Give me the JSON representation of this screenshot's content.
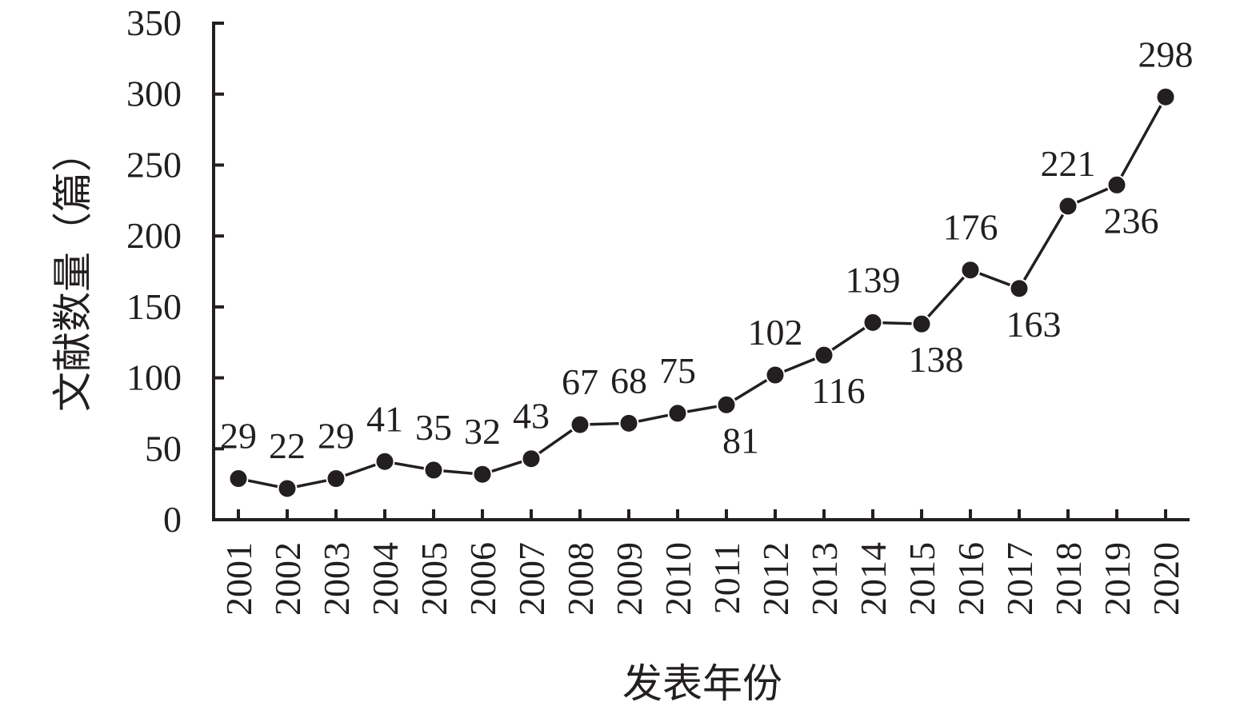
{
  "chart_data": {
    "type": "line",
    "title": "",
    "xlabel": "发表年份",
    "ylabel": "文献数量（篇）",
    "ylim": [
      0,
      350
    ],
    "yticks": [
      0,
      50,
      100,
      150,
      200,
      250,
      300,
      350
    ],
    "grid": false,
    "categories": [
      "2001",
      "2002",
      "2003",
      "2004",
      "2005",
      "2006",
      "2007",
      "2008",
      "2009",
      "2010",
      "2011",
      "2012",
      "2013",
      "2014",
      "2015",
      "2016",
      "2017",
      "2018",
      "2019",
      "2020"
    ],
    "series": [
      {
        "values": [
          29,
          22,
          29,
          41,
          35,
          32,
          43,
          67,
          68,
          75,
          81,
          102,
          116,
          139,
          138,
          176,
          163,
          221,
          236,
          298
        ],
        "label_positions": [
          "above",
          "above",
          "above",
          "above",
          "above",
          "above",
          "above",
          "above",
          "above",
          "above",
          "below",
          "above",
          "below",
          "above",
          "below",
          "above",
          "below",
          "above",
          "below",
          "above"
        ]
      }
    ]
  },
  "colors": {
    "ink": "#231f20",
    "background": "#ffffff"
  }
}
